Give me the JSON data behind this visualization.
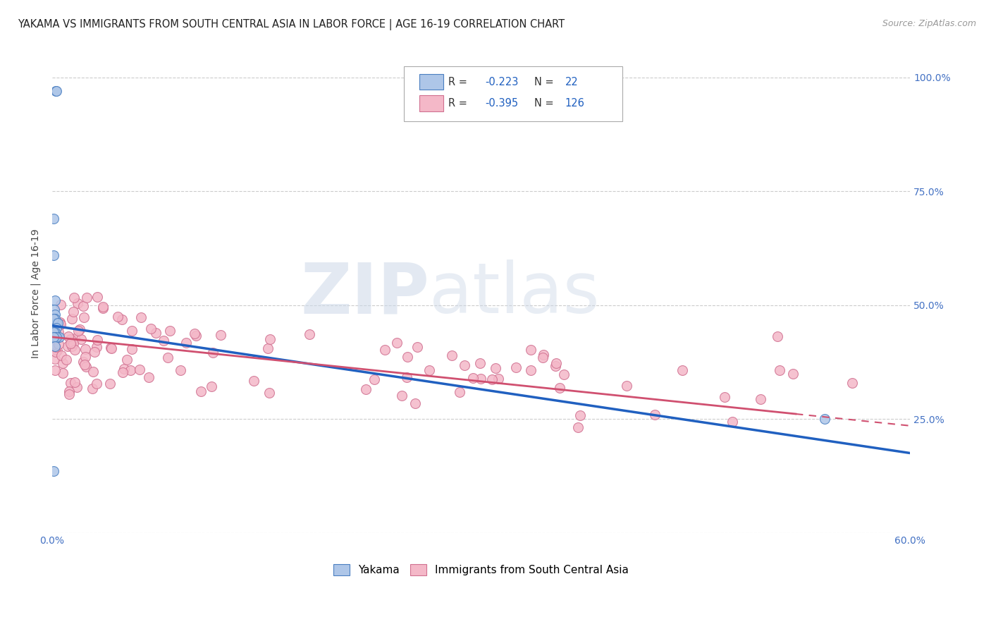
{
  "title": "YAKAMA VS IMMIGRANTS FROM SOUTH CENTRAL ASIA IN LABOR FORCE | AGE 16-19 CORRELATION CHART",
  "source": "Source: ZipAtlas.com",
  "ylabel": "In Labor Force | Age 16-19",
  "xlim": [
    0.0,
    0.6
  ],
  "ylim": [
    0.0,
    1.05
  ],
  "xticks": [
    0.0,
    0.1,
    0.2,
    0.3,
    0.4,
    0.5,
    0.6
  ],
  "xtick_labels": [
    "0.0%",
    "",
    "",
    "",
    "",
    "",
    "60.0%"
  ],
  "yticks": [
    0.0,
    0.25,
    0.5,
    0.75,
    1.0
  ],
  "ytick_labels_right": [
    "",
    "25.0%",
    "50.0%",
    "75.0%",
    "100.0%"
  ],
  "yakama_color": "#aec6e8",
  "yakama_edge_color": "#4a7fc1",
  "immigrant_color": "#f4b8c8",
  "immigrant_edge_color": "#d07090",
  "trend_yakama_color": "#2060c0",
  "trend_immigrant_color": "#d05070",
  "R_yakama": "-0.223",
  "N_yakama": "22",
  "R_immigrant": "-0.395",
  "N_immigrant": "126",
  "background_color": "#ffffff",
  "grid_color": "#cccccc",
  "title_fontsize": 10.5,
  "axis_label_fontsize": 10,
  "tick_fontsize": 10,
  "watermark_ZIP": "ZIP",
  "watermark_atlas": "atlas",
  "watermark_color": "#c8d8e8",
  "legend_label_yakama": "Yakama",
  "legend_label_immigrant": "Immigrants from South Central Asia",
  "trend_yk_x0": 0.0,
  "trend_yk_x1": 0.6,
  "trend_yk_y0": 0.455,
  "trend_yk_y1": 0.175,
  "trend_im_x0": 0.0,
  "trend_im_x1": 0.6,
  "trend_im_y0": 0.43,
  "trend_im_y1": 0.235,
  "trend_im_solid_end": 0.52
}
